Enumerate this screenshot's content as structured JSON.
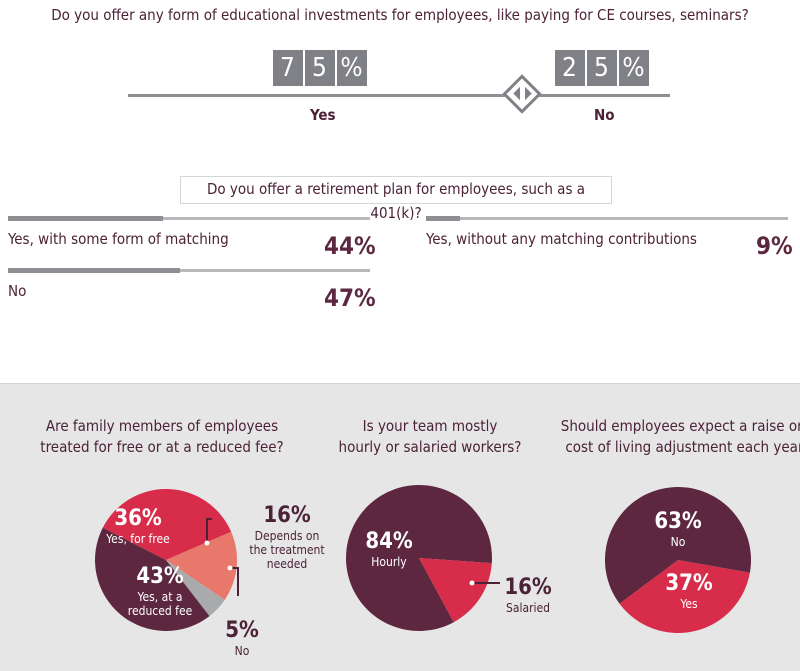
{
  "education": {
    "question": "Do you offer any form of educational investments for employees, like paying for CE courses, seminars?",
    "yes_digits": [
      "7",
      "5",
      "%"
    ],
    "no_digits": [
      "2",
      "5",
      "%"
    ],
    "yes_label": "Yes",
    "no_label": "No",
    "yes_value": 75,
    "no_value": 25
  },
  "retirement": {
    "question": "Do you offer a retirement plan for employees, such as a 401(k)?",
    "options": [
      {
        "label": "Yes, with some form of matching",
        "pct": "44%",
        "value": 44
      },
      {
        "label": "No",
        "pct": "47%",
        "value": 47
      },
      {
        "label": "Yes, without any matching contributions",
        "pct": "9%",
        "value": 9
      }
    ]
  },
  "colors": {
    "maroon": "#5d2740",
    "red": "#d82d4a",
    "salmon": "#e7786b",
    "gray": "#a9aaac",
    "text": "#4b2236"
  },
  "chart_data": [
    {
      "type": "pie",
      "title": "Are family members of employees treated for free or at a reduced fee?",
      "title_lines": [
        "Are family members of employees",
        "treated for free or at a reduced fee?"
      ],
      "categories": [
        "Yes, for free",
        "Depends on the treatment needed",
        "No",
        "Yes, at a reduced fee"
      ],
      "values": [
        36,
        16,
        5,
        43
      ],
      "labels": [
        {
          "pct": "36%",
          "lines": [
            "Yes, for free"
          ]
        },
        {
          "pct": "16%",
          "lines": [
            "Depends on",
            "the treatment",
            "needed"
          ]
        },
        {
          "pct": "5%",
          "lines": [
            "No"
          ]
        },
        {
          "pct": "43%",
          "lines": [
            "Yes, at a",
            "reduced fee"
          ]
        }
      ]
    },
    {
      "type": "pie",
      "title": "Is your team mostly hourly or salaried workers?",
      "title_lines": [
        "Is your team mostly",
        "hourly or salaried workers?"
      ],
      "categories": [
        "Hourly",
        "Salaried"
      ],
      "values": [
        84,
        16
      ],
      "labels": [
        {
          "pct": "84%",
          "lines": [
            "Hourly"
          ]
        },
        {
          "pct": "16%",
          "lines": [
            "Salaried"
          ]
        }
      ]
    },
    {
      "type": "pie",
      "title": "Should employees expect a raise or a cost of living adjustment each year?",
      "title_lines": [
        "Should employees expect a raise or a",
        "cost of living adjustment each year?"
      ],
      "categories": [
        "No",
        "Yes"
      ],
      "values": [
        63,
        37
      ],
      "labels": [
        {
          "pct": "63%",
          "lines": [
            "No"
          ]
        },
        {
          "pct": "37%",
          "lines": [
            "Yes"
          ]
        }
      ]
    }
  ]
}
